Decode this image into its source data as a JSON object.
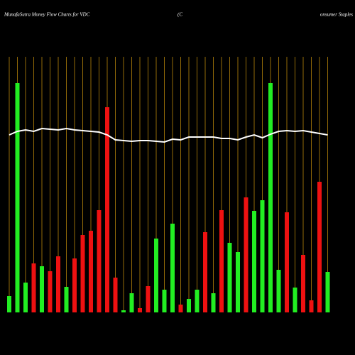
{
  "chart_data": {
    "type": "bar",
    "title": "MunafaSutra  Money Flow  Charts for VDC",
    "subtitle_left": "(C",
    "subtitle_right": "onsumer Staples",
    "values": [
      23,
      323,
      42,
      69,
      65,
      58,
      79,
      36,
      76,
      109,
      115,
      144,
      289,
      49,
      3,
      27,
      6,
      37,
      104,
      32,
      125,
      11,
      19,
      32,
      113,
      27,
      144,
      98,
      85,
      162,
      143,
      158,
      323,
      60,
      141,
      35,
      81,
      17,
      184,
      57
    ],
    "colors": [
      "#22ee22",
      "#22ee22",
      "#22ee22",
      "#ee1111",
      "#22ee22",
      "#ee1111",
      "#ee1111",
      "#22ee22",
      "#ee1111",
      "#ee1111",
      "#ee1111",
      "#ee1111",
      "#ee1111",
      "#ee1111",
      "#22ee22",
      "#22ee22",
      "#ee1111",
      "#ee1111",
      "#22ee22",
      "#22ee22",
      "#22ee22",
      "#ee1111",
      "#22ee22",
      "#22ee22",
      "#ee1111",
      "#22ee22",
      "#ee1111",
      "#22ee22",
      "#22ee22",
      "#ee1111",
      "#22ee22",
      "#22ee22",
      "#22ee22",
      "#22ee22",
      "#ee1111",
      "#22ee22",
      "#ee1111",
      "#ee1111",
      "#ee1111",
      "#22ee22"
    ],
    "line": {
      "color": "#ffffff",
      "values": [
        250,
        255,
        257,
        255,
        259,
        258,
        257,
        259,
        257,
        256,
        255,
        254,
        250,
        243,
        242,
        241,
        242,
        242,
        241,
        240,
        244,
        243,
        247,
        247,
        247,
        247,
        245,
        245,
        243,
        247,
        250,
        246,
        251,
        255,
        256,
        255,
        256,
        254,
        252,
        250
      ]
    },
    "ylim": [
      0,
      360
    ],
    "gridline_color": "#b8860b"
  }
}
